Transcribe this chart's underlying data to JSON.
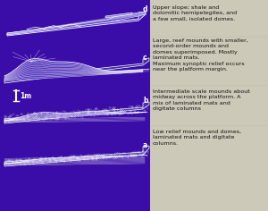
{
  "background_color": "#3a0da8",
  "right_panel_color": "#ccc9b8",
  "fig_width": 3.0,
  "fig_height": 2.36,
  "labels": {
    "d": "Upper slope; shale and\ndolomitic hemipelegites, and\na few small, isolated domes.",
    "c": "Large, reef mounds with smaller,\nsecond-order mounds and\ndomes superimposed. Mostly\nlaminated mats.\nMaximum synoptic relief occurs\nnear the platform margin.",
    "b": "Intermediate scale mounds about\nmidway across the platform. A\nmix of laminated mats and\ndigitate columns",
    "a": "Low relief mounds and domes,\nlaminated mats and digitate\ncolumns."
  },
  "scale_bar_label": "1m",
  "white": "#ffffff",
  "mound_fill": "#5a3fc0",
  "mound_fill2": "#4430a0"
}
